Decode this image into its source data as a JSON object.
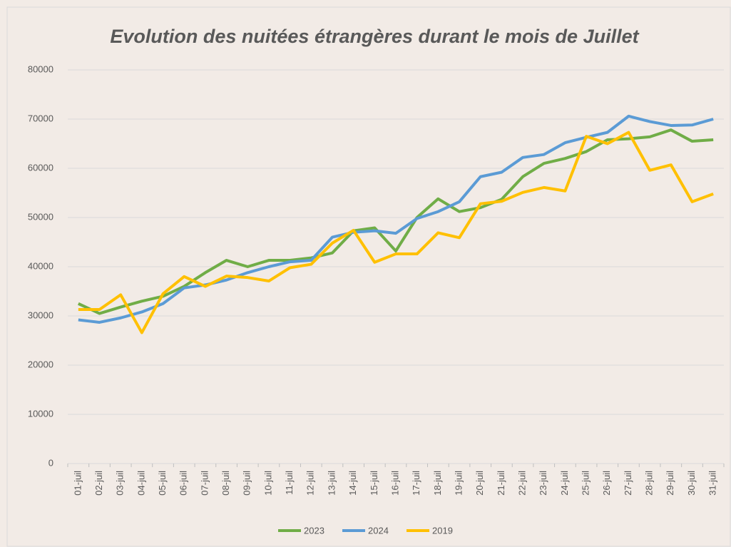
{
  "chart_data": {
    "type": "line",
    "title": "Evolution des nuitées étrangères durant le mois de Juillet",
    "categories": [
      "01-juil",
      "02-juil",
      "03-juil",
      "04-juil",
      "05-juil",
      "06-juil",
      "07-juil",
      "08-juil",
      "09-juil",
      "10-juil",
      "11-juil",
      "12-juil",
      "13-juil",
      "14-juil",
      "15-juil",
      "16-juil",
      "17-juil",
      "18-juil",
      "19-juil",
      "20-juil",
      "21-juil",
      "22-juil",
      "23-juil",
      "24-juil",
      "25-juil",
      "26-juil",
      "27-juil",
      "28-juil",
      "29-juil",
      "30-juil",
      "31-juil"
    ],
    "series": [
      {
        "name": "2023",
        "color": "#70ad47",
        "values": [
          32500,
          30500,
          31800,
          33000,
          34000,
          36000,
          38800,
          41300,
          40000,
          41300,
          41300,
          41800,
          42800,
          47300,
          47900,
          43200,
          50000,
          53800,
          51200,
          52000,
          53700,
          58300,
          61000,
          62000,
          63400,
          65800,
          66000,
          66400,
          67800,
          65500,
          65800
        ]
      },
      {
        "name": "2024",
        "color": "#5b9bd5",
        "values": [
          29200,
          28700,
          29600,
          30800,
          32500,
          35700,
          36300,
          37300,
          38800,
          40000,
          41000,
          41300,
          46000,
          47000,
          47300,
          46800,
          49800,
          51200,
          53200,
          58300,
          59200,
          62200,
          62800,
          65200,
          66300,
          67300,
          70600,
          69500,
          68700,
          68800,
          70000
        ]
      },
      {
        "name": "2019",
        "color": "#ffc000",
        "values": [
          31300,
          31300,
          34300,
          26600,
          34500,
          38000,
          36000,
          38100,
          37800,
          37100,
          39800,
          40500,
          44800,
          47400,
          40900,
          42600,
          42600,
          46900,
          45900,
          52800,
          53300,
          55100,
          56100,
          55400,
          66500,
          65000,
          67300,
          59600,
          60700,
          53200,
          54800
        ]
      }
    ],
    "ylim": [
      0,
      80000
    ],
    "yticks": [
      0,
      10000,
      20000,
      30000,
      40000,
      50000,
      60000,
      70000,
      80000
    ],
    "grid": true,
    "legend": "bottom"
  }
}
